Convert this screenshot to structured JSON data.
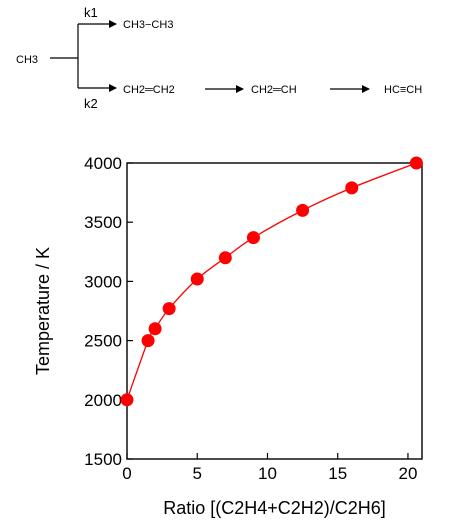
{
  "scheme": {
    "reactant": "CH3",
    "branch_top": {
      "rate_label": "k1",
      "product": "CH3−CH3"
    },
    "branch_bottom": {
      "rate_label": "k2",
      "steps": [
        "CH2═CH2",
        "CH2═CH",
        "HC≡CH"
      ]
    }
  },
  "chart_data": {
    "type": "scatter",
    "title": "",
    "xlabel": "Ratio  [(C2H4+C2H2)/C2H6]",
    "ylabel": "Temperature / K",
    "xlim": [
      0,
      21
    ],
    "ylim": [
      1500,
      4000
    ],
    "x_ticks": [
      "0",
      "5",
      "10",
      "15",
      "20"
    ],
    "y_ticks": [
      "1500",
      "2000",
      "2500",
      "3000",
      "3500",
      "4000"
    ],
    "grid": false,
    "legend": "none",
    "colors": {
      "marker": "#ff0000",
      "curve": "#ff0000",
      "axes": "#000000"
    },
    "series": [
      {
        "points": [
          [
            0,
            2000
          ],
          [
            1.5,
            2500
          ],
          [
            2,
            2600
          ],
          [
            3,
            2770
          ],
          [
            5,
            3020
          ],
          [
            7,
            3200
          ],
          [
            9,
            3370
          ],
          [
            12.5,
            3600
          ],
          [
            16,
            3790
          ],
          [
            20.6,
            4000
          ]
        ],
        "fit_curve": true
      }
    ]
  }
}
